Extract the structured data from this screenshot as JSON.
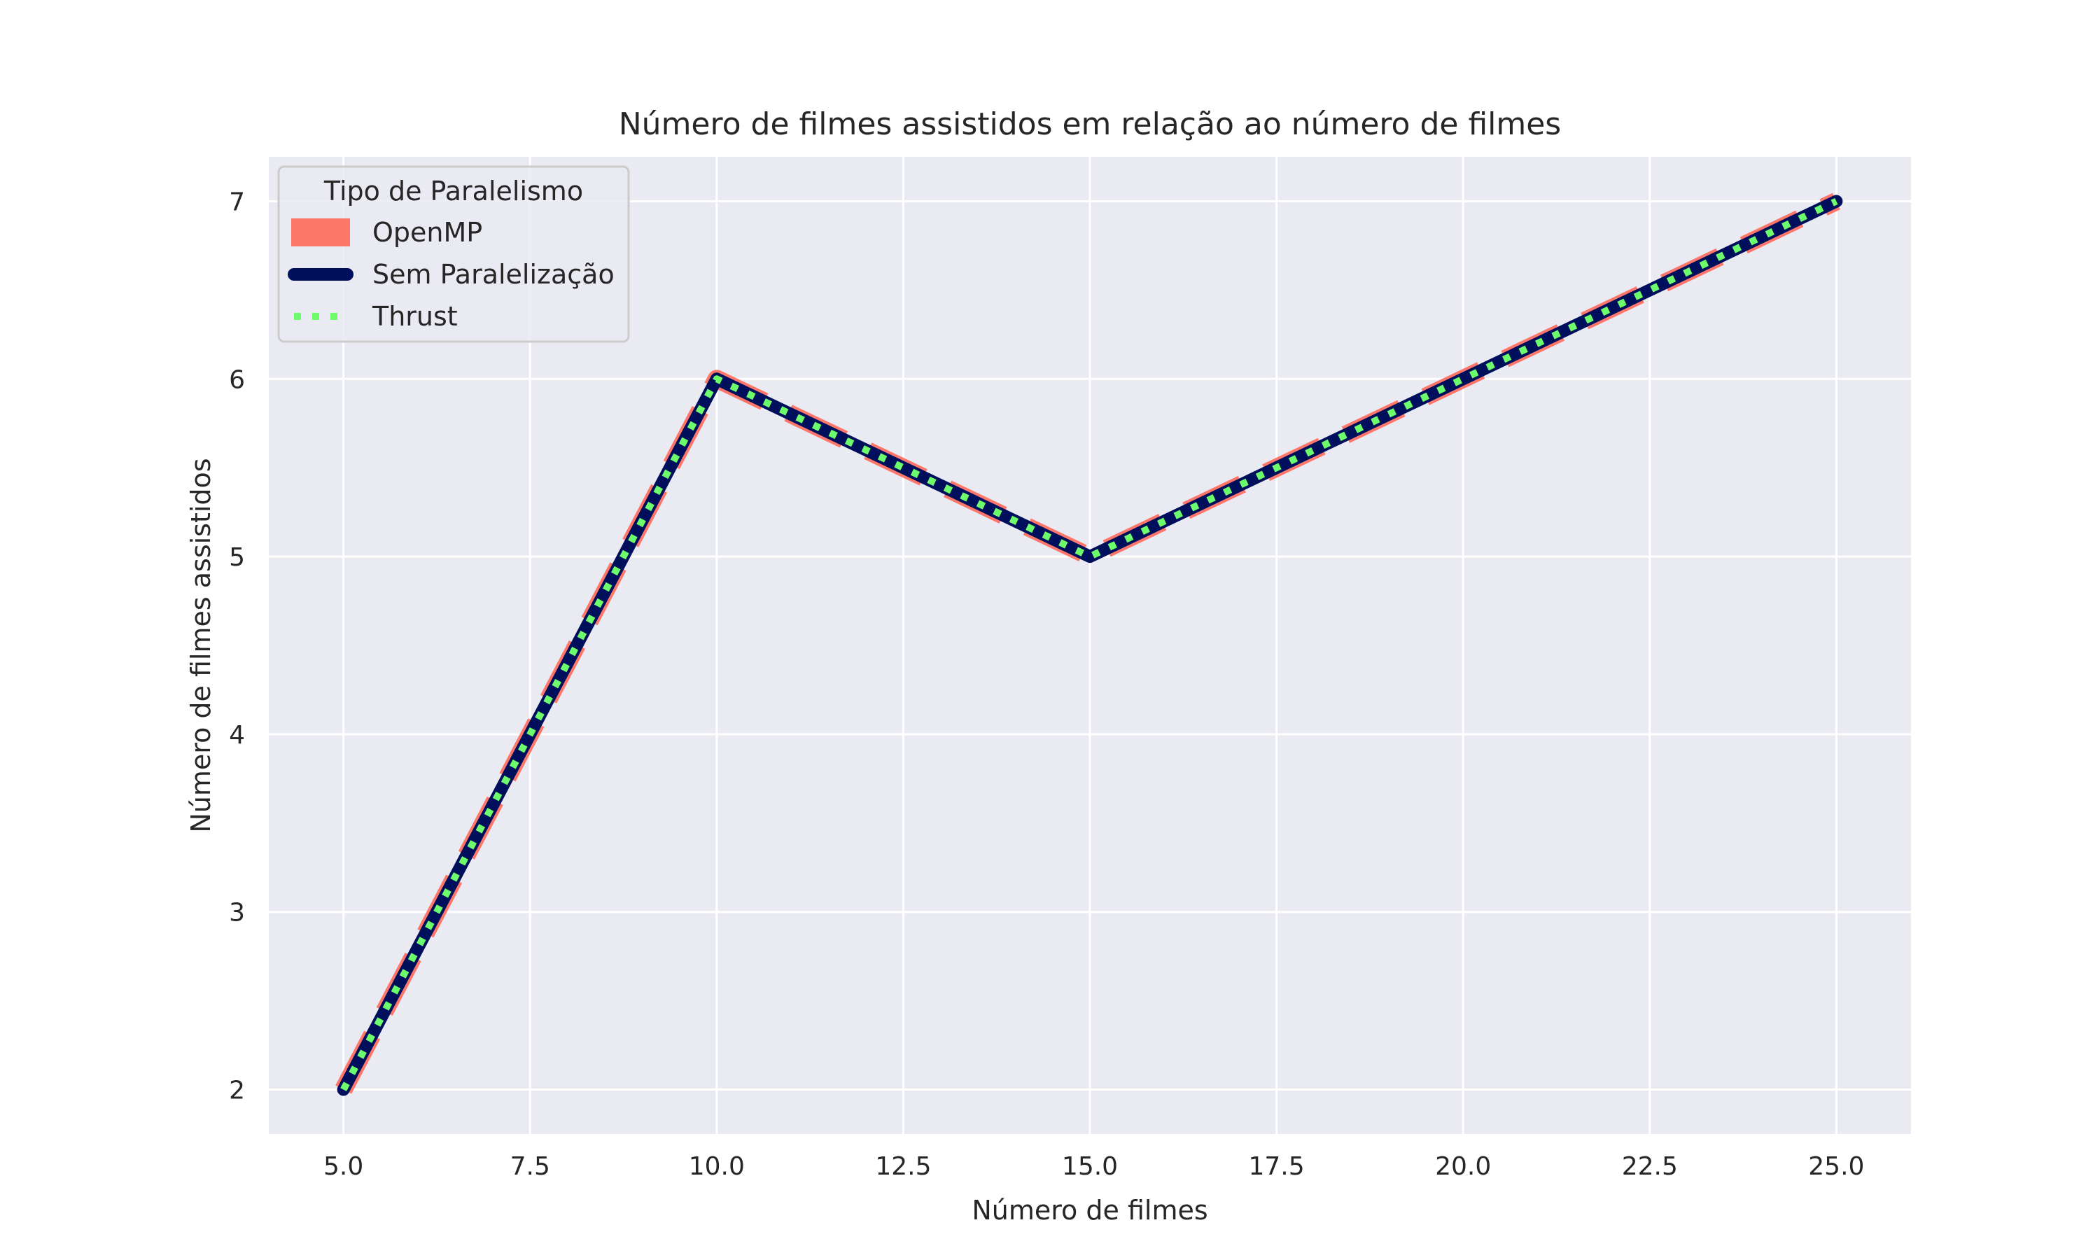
{
  "chart_data": {
    "type": "line",
    "title": "Número de filmes assistidos em relação ao número de filmes",
    "xlabel": "Número de filmes",
    "ylabel": "Número de filmes assistidos",
    "x": [
      5,
      10,
      15,
      25
    ],
    "xlim": [
      4,
      26
    ],
    "ylim": [
      1.75,
      7.25
    ],
    "xticks": [
      5.0,
      7.5,
      10.0,
      12.5,
      15.0,
      17.5,
      20.0,
      22.5,
      25.0
    ],
    "xtick_labels": [
      "5.0",
      "7.5",
      "10.0",
      "12.5",
      "15.0",
      "17.5",
      "20.0",
      "22.5",
      "25.0"
    ],
    "yticks": [
      2,
      3,
      4,
      5,
      6,
      7
    ],
    "ytick_labels": [
      "2",
      "3",
      "4",
      "5",
      "6",
      "7"
    ],
    "grid": true,
    "background": "#eaeaf2",
    "legend": {
      "title": "Tipo de Paralelismo",
      "placement": "top-left"
    },
    "series": [
      {
        "name": "OpenMP",
        "values": [
          2,
          6,
          5,
          7
        ],
        "color": "#ff776b",
        "style": "dashed"
      },
      {
        "name": "Sem Paralelização",
        "values": [
          2,
          6,
          5,
          7
        ],
        "color": "#000f5c",
        "style": "solid"
      },
      {
        "name": "Thrust",
        "values": [
          2,
          6,
          5,
          7
        ],
        "color": "#6cfc6c",
        "style": "dotted"
      }
    ]
  }
}
